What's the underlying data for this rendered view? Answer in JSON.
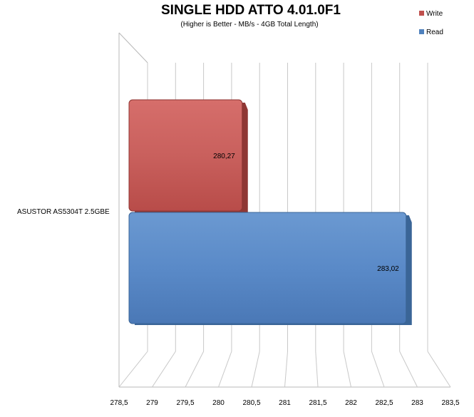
{
  "chart_data": {
    "type": "bar",
    "orientation": "horizontal",
    "title": "SINGLE HDD ATTO 4.01.0F1",
    "subtitle": "(Higher is Better - MB/s - 4GB Total Length)",
    "categories": [
      "ASUSTOR AS5304T 2.5GBE"
    ],
    "series": [
      {
        "name": "Write",
        "values": [
          280.27
        ],
        "labels": [
          "280,27"
        ],
        "color": "#C0504D"
      },
      {
        "name": "Read",
        "values": [
          283.02
        ],
        "labels": [
          "283,02"
        ],
        "color": "#4F81BD"
      }
    ],
    "xlim": [
      278.5,
      283.5
    ],
    "x_ticks": [
      278.5,
      279,
      279.5,
      280,
      280.5,
      281,
      281.5,
      282,
      282.5,
      283,
      283.5
    ],
    "x_tick_labels": [
      "278,5",
      "279",
      "279,5",
      "280",
      "280,5",
      "281",
      "281,5",
      "282",
      "282,5",
      "283",
      "283,5"
    ],
    "grid": true,
    "legend": "top-right"
  }
}
